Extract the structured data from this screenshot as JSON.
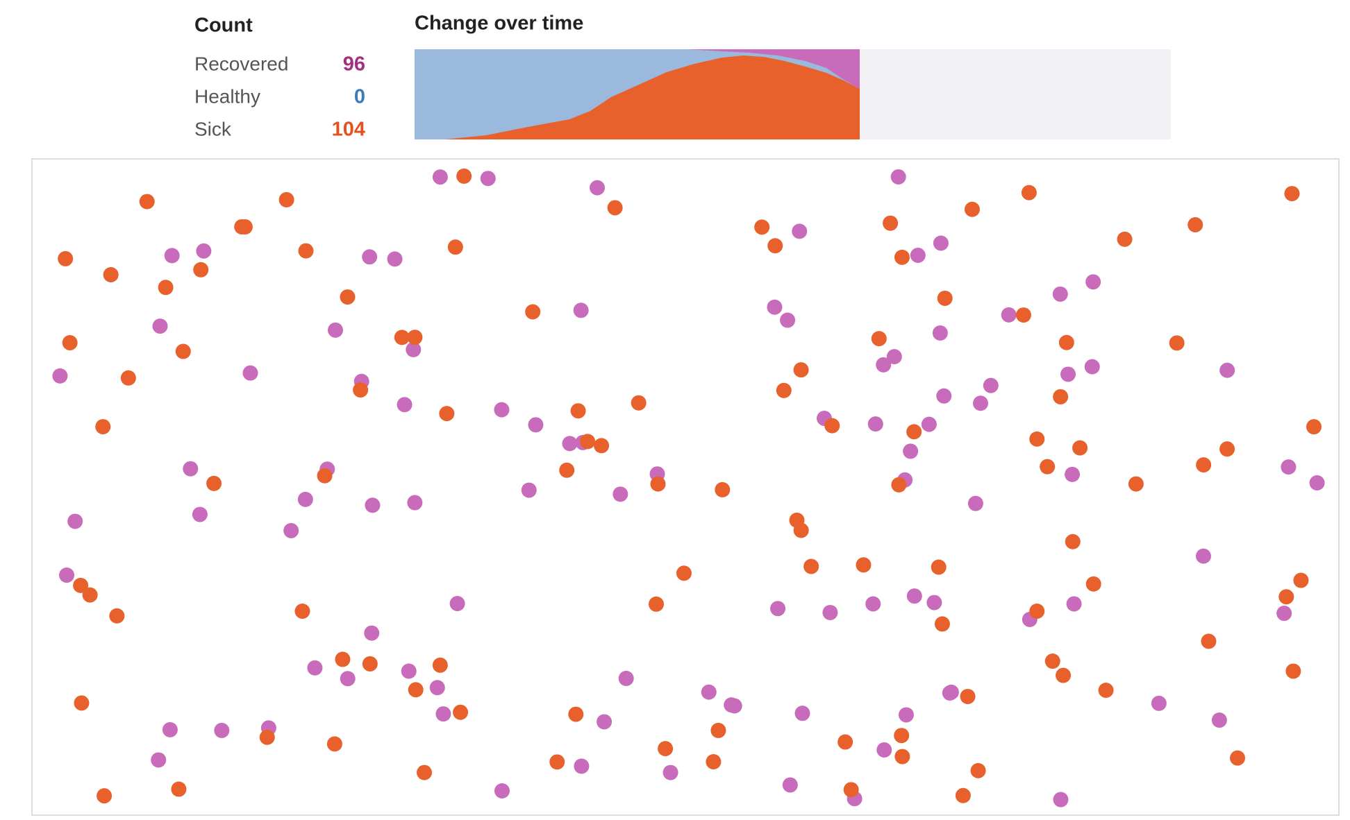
{
  "header": {
    "count_title": "Count",
    "chart_title": "Change over time"
  },
  "counts": [
    {
      "label": "Recovered",
      "value": 96,
      "color": "#a3307f",
      "dot_color": "#c96bbb"
    },
    {
      "label": "Healthy",
      "value": 0,
      "color": "#3f7ab8",
      "dot_color": "#9ab9dc"
    },
    {
      "label": "Sick",
      "value": 104,
      "color": "#e0531f",
      "dot_color": "#e8602c"
    }
  ]
}
